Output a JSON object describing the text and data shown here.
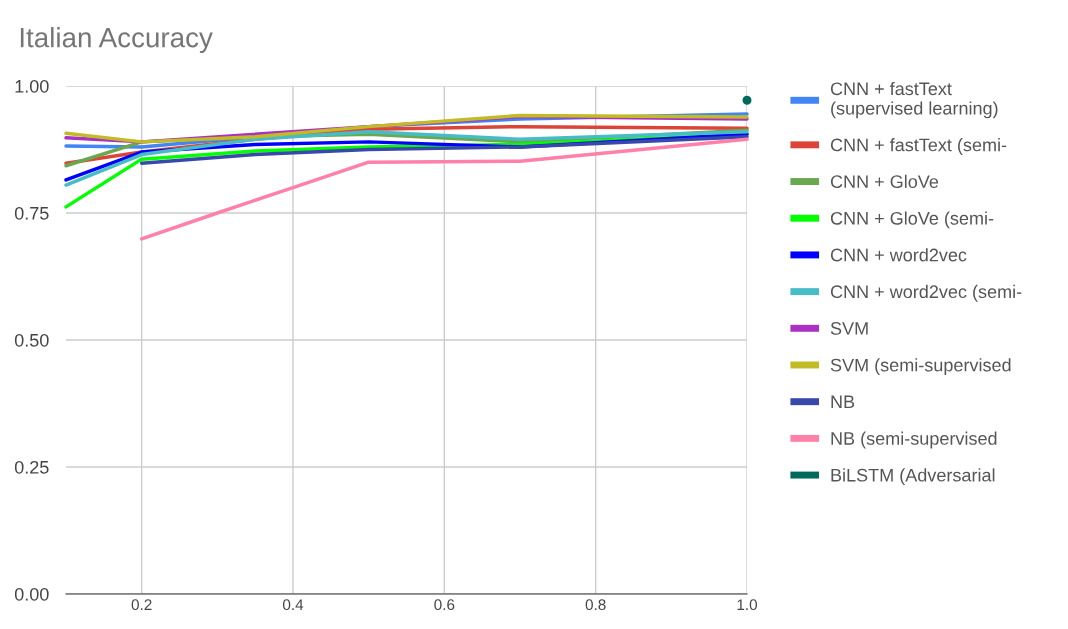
{
  "chart_data": {
    "type": "line",
    "title": "Italian Accuracy",
    "xlim": [
      0.1,
      1.0
    ],
    "ylim": [
      0,
      1.0
    ],
    "xticks": [
      {
        "value": 0.2,
        "label": "0.2"
      },
      {
        "value": 0.4,
        "label": "0.4"
      },
      {
        "value": 0.6,
        "label": "0.6"
      },
      {
        "value": 0.8,
        "label": "0.8"
      },
      {
        "value": 1.0,
        "label": "1.0"
      }
    ],
    "yticks": [
      {
        "value": 0,
        "label": "0.00"
      },
      {
        "value": 0.25,
        "label": "0.25"
      },
      {
        "value": 0.5,
        "label": "0.50"
      },
      {
        "value": 0.75,
        "label": "0.75"
      },
      {
        "value": 1.0,
        "label": "1.00"
      }
    ],
    "grid": true,
    "legend": "right",
    "marker": "none",
    "line_style": "solid",
    "series": [
      {
        "name": "CNN + fastText\n(supervised learning)",
        "color": "#4285f4",
        "x": [
          0.1,
          0.2,
          0.35,
          0.5,
          0.7,
          1.0
        ],
        "values": [
          0.882,
          0.88,
          0.9,
          0.92,
          0.935,
          0.945
        ]
      },
      {
        "name": "CNN + fastText (semi-",
        "color": "#db4437",
        "x": [
          0.1,
          0.2,
          0.35,
          0.5,
          0.7,
          1.0
        ],
        "values": [
          0.848,
          0.87,
          0.895,
          0.915,
          0.92,
          0.917
        ]
      },
      {
        "name": "CNN + GloVe",
        "color": "#6aa84f",
        "x": [
          0.1,
          0.2,
          0.35,
          0.5,
          0.7,
          1.0
        ],
        "values": [
          0.843,
          0.89,
          0.9,
          0.905,
          0.89,
          0.913
        ]
      },
      {
        "name": "CNN + GloVe (semi-",
        "color": "#00ff00",
        "x": [
          0.1,
          0.2,
          0.35,
          0.5,
          0.7,
          1.0
        ],
        "values": [
          0.762,
          0.856,
          0.872,
          0.88,
          0.885,
          0.905
        ]
      },
      {
        "name": "CNN + word2vec",
        "color": "#0000ff",
        "x": [
          0.1,
          0.2,
          0.35,
          0.5,
          0.7,
          1.0
        ],
        "values": [
          0.815,
          0.87,
          0.885,
          0.89,
          0.88,
          0.905
        ]
      },
      {
        "name": "CNN + word2vec (semi-",
        "color": "#46bdc6",
        "x": [
          0.1,
          0.2,
          0.35,
          0.5,
          0.7,
          1.0
        ],
        "values": [
          0.805,
          0.865,
          0.895,
          0.91,
          0.895,
          0.91
        ]
      },
      {
        "name": "SVM",
        "color": "#ab30c4",
        "x": [
          0.1,
          0.2,
          0.5,
          0.7,
          1.0
        ],
        "values": [
          0.898,
          0.89,
          0.92,
          0.94,
          0.935
        ]
      },
      {
        "name": "SVM (semi-supervised",
        "color": "#c2bb26",
        "x": [
          0.1,
          0.2,
          0.35,
          0.5,
          0.7,
          1.0
        ],
        "values": [
          0.907,
          0.89,
          0.9,
          0.92,
          0.942,
          0.939
        ]
      },
      {
        "name": "NB",
        "color": "#3949ab",
        "x": [
          0.2,
          0.35,
          0.5,
          0.7,
          1.0
        ],
        "values": [
          0.848,
          0.865,
          0.875,
          0.88,
          0.9
        ]
      },
      {
        "name": "NB (semi-supervised",
        "color": "#ff80a8",
        "x": [
          0.2,
          0.3,
          0.4,
          0.5,
          0.7,
          1.0
        ],
        "values": [
          0.699,
          0.75,
          0.8,
          0.85,
          0.852,
          0.895
        ]
      },
      {
        "name": "BiLSTM (Adversarial",
        "color": "#00695c",
        "type": "scatter",
        "x": [
          1.0
        ],
        "values": [
          0.972
        ]
      }
    ]
  }
}
